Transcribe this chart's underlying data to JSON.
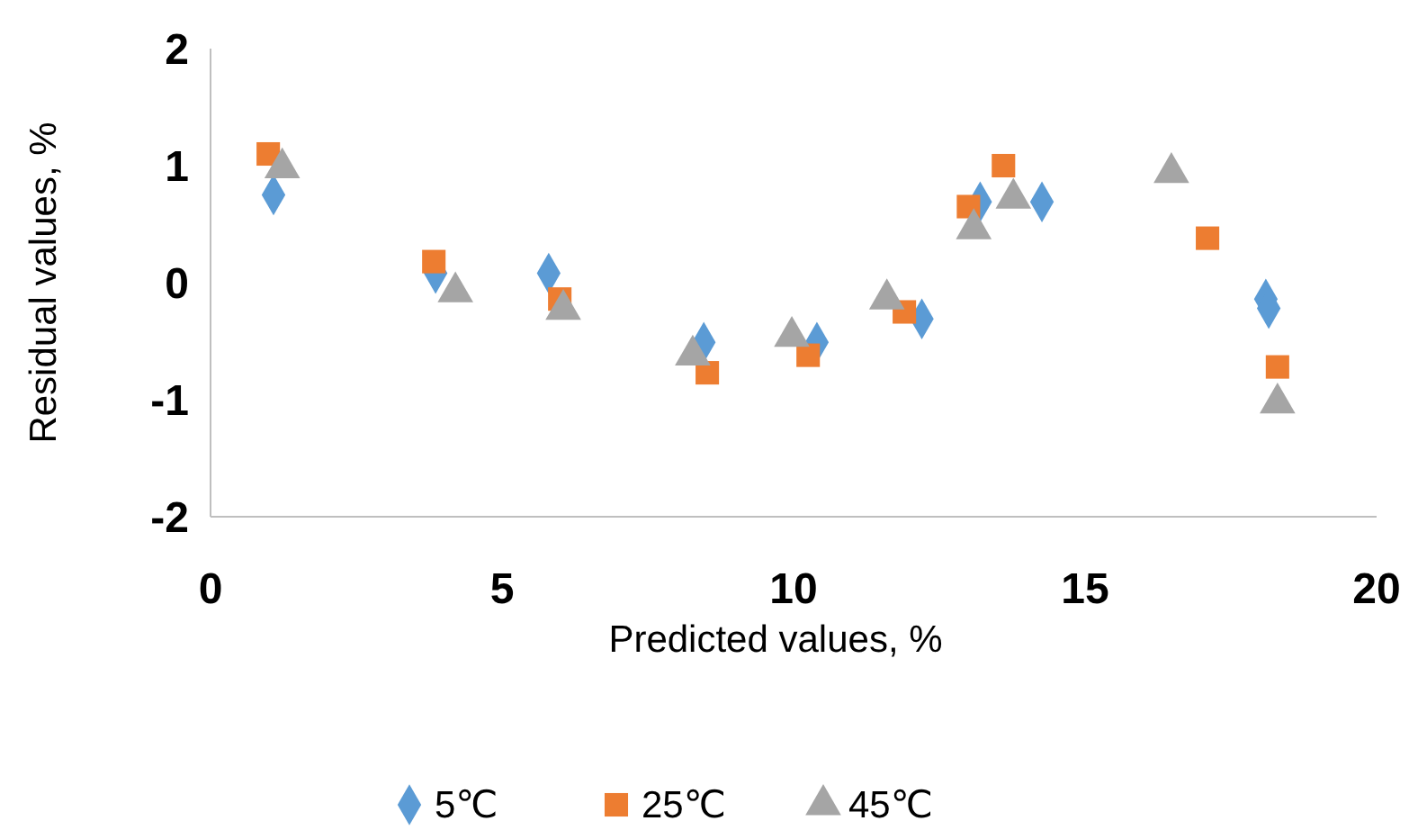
{
  "chart_data": {
    "type": "scatter",
    "xlabel": "Predicted values, %",
    "ylabel": "Residual values, %",
    "xlim": [
      0,
      20
    ],
    "ylim": [
      -2,
      2
    ],
    "xticks": [
      0,
      5,
      10,
      15,
      20
    ],
    "yticks": [
      2,
      1,
      0,
      -1,
      -2
    ],
    "grid": false,
    "legend": "bottom",
    "series": [
      {
        "name": "5℃",
        "color": "#5b9bd5",
        "marker": "diamond",
        "x": [
          1.08,
          3.86,
          5.8,
          8.46,
          10.4,
          12.2,
          13.2,
          14.26,
          18.1,
          18.15
        ],
        "values": [
          0.75,
          0.08,
          0.08,
          -0.51,
          -0.51,
          -0.31,
          0.69,
          0.69,
          -0.14,
          -0.22
        ]
      },
      {
        "name": "25℃",
        "color": "#ed7d31",
        "marker": "square",
        "x": [
          0.99,
          3.83,
          5.99,
          8.52,
          10.25,
          11.9,
          13.0,
          13.6,
          17.1,
          18.3
        ],
        "values": [
          1.1,
          0.18,
          -0.14,
          -0.77,
          -0.62,
          -0.25,
          0.65,
          1.0,
          0.38,
          -0.72
        ]
      },
      {
        "name": "45℃",
        "color": "#a5a5a5",
        "marker": "triangle",
        "x": [
          1.23,
          4.2,
          6.05,
          8.27,
          9.97,
          11.6,
          13.09,
          13.77,
          16.48,
          18.3
        ],
        "values": [
          0.98,
          -0.08,
          -0.23,
          -0.62,
          -0.46,
          -0.14,
          0.46,
          0.72,
          0.94,
          -1.03
        ]
      }
    ]
  }
}
